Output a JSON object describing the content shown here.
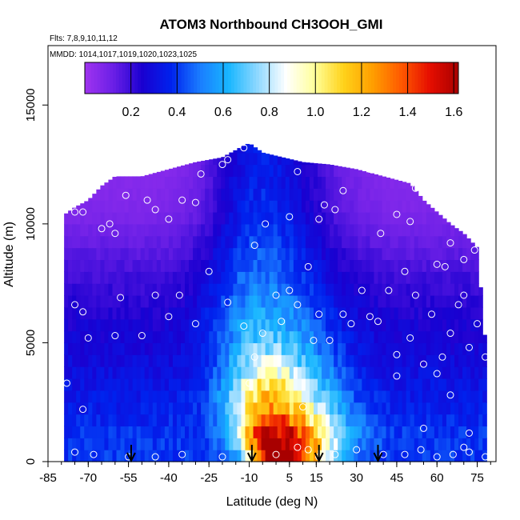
{
  "chart_data": {
    "type": "heatmap",
    "title": "ATOM3 Northbound CH3OOH_GMI",
    "annotations": {
      "flights": "Flts: 7,8,9,10,11,12",
      "dates": "MMDD: 1014,1017,1019,1020,1023,1025"
    },
    "xlabel": "Latitude (deg N)",
    "ylabel": "Altitude (m)",
    "xlim": [
      -85,
      82
    ],
    "ylim": [
      0,
      17500
    ],
    "x_ticks": [
      -85,
      -70,
      -55,
      -40,
      -25,
      -10,
      5,
      15,
      30,
      45,
      60,
      75
    ],
    "y_ticks": [
      0,
      5000,
      10000,
      15000
    ],
    "colorbar": {
      "range": [
        0,
        1.62
      ],
      "ticks": [
        0.2,
        0.4,
        0.6,
        0.8,
        1.0,
        1.2,
        1.4,
        1.6
      ],
      "tick_labels": [
        "0.2",
        "0.4",
        "0.6",
        "0.8",
        "1.0",
        "1.2",
        "1.4",
        "1.6"
      ],
      "colors": [
        "#a034f0",
        "#6a1fe6",
        "#1a00d0",
        "#0022ee",
        "#1a7cff",
        "#18b6ff",
        "#8ed8ff",
        "#ffffff",
        "#ffff9a",
        "#ffd21a",
        "#ff9f00",
        "#ff5a00",
        "#e60e00",
        "#a80000"
      ]
    },
    "profile_top": [
      [
        -83,
        7700
      ],
      [
        -80,
        10300
      ],
      [
        -75,
        10700
      ],
      [
        -70,
        11000
      ],
      [
        -65,
        11600
      ],
      [
        -60,
        12000
      ],
      [
        -50,
        12000
      ],
      [
        -40,
        12300
      ],
      [
        -30,
        12600
      ],
      [
        -20,
        12800
      ],
      [
        -12,
        13300
      ],
      [
        -10,
        13400
      ],
      [
        -5,
        13000
      ],
      [
        10,
        12600
      ],
      [
        20,
        12500
      ],
      [
        30,
        12300
      ],
      [
        40,
        12000
      ],
      [
        50,
        11700
      ],
      [
        55,
        11000
      ],
      [
        60,
        10500
      ],
      [
        65,
        10000
      ],
      [
        70,
        9600
      ],
      [
        75,
        9000
      ],
      [
        78,
        5000
      ]
    ],
    "profile_bottom_lat": [
      -79,
      78
    ],
    "mean_profile": [
      [
        0,
        0.4
      ],
      [
        1000,
        0.4
      ],
      [
        2000,
        0.36
      ],
      [
        3000,
        0.33
      ],
      [
        4500,
        0.28
      ],
      [
        6000,
        0.25
      ],
      [
        7500,
        0.2
      ],
      [
        9000,
        0.14
      ],
      [
        10500,
        0.08
      ],
      [
        12000,
        0.06
      ],
      [
        13500,
        0.04
      ]
    ],
    "plume": [
      [
        0,
        1.48,
        6,
        13
      ],
      [
        500,
        1.4,
        8,
        14
      ],
      [
        1000,
        1.28,
        9,
        15
      ],
      [
        1500,
        1.12,
        10,
        16
      ],
      [
        2000,
        0.98,
        10,
        16
      ],
      [
        2500,
        0.88,
        11,
        16
      ],
      [
        3000,
        0.78,
        11,
        16
      ],
      [
        3500,
        0.68,
        11,
        16
      ],
      [
        4000,
        0.58,
        12,
        16
      ],
      [
        5000,
        0.44,
        12,
        17
      ],
      [
        6000,
        0.36,
        13,
        17
      ],
      [
        7000,
        0.32,
        13,
        18
      ],
      [
        8000,
        0.3,
        13,
        18
      ]
    ],
    "plume_center": [
      [
        0,
        0
      ],
      [
        1000,
        -1
      ],
      [
        2000,
        -2
      ],
      [
        3000,
        -3
      ],
      [
        4000,
        -3
      ],
      [
        5000,
        -4
      ],
      [
        6000,
        -5
      ],
      [
        7000,
        -6
      ]
    ],
    "arrows": [
      -54,
      -9,
      16,
      38
    ],
    "observations": [
      [
        -83,
        7800
      ],
      [
        -82,
        10200
      ],
      [
        -75,
        10500
      ],
      [
        -72,
        10500
      ],
      [
        -68,
        11800
      ],
      [
        -65,
        9800
      ],
      [
        -62,
        10000
      ],
      [
        -60,
        9600
      ],
      [
        -56,
        11200
      ],
      [
        -48,
        11000
      ],
      [
        -45,
        10600
      ],
      [
        -40,
        10200
      ],
      [
        -35,
        11000
      ],
      [
        -30,
        10900
      ],
      [
        -28,
        12100
      ],
      [
        -20,
        12500
      ],
      [
        -18,
        12700
      ],
      [
        -12,
        13200
      ],
      [
        -8,
        9100
      ],
      [
        -4,
        10000
      ],
      [
        5,
        10300
      ],
      [
        8,
        12200
      ],
      [
        12,
        12900
      ],
      [
        16,
        10200
      ],
      [
        18,
        10800
      ],
      [
        22,
        10600
      ],
      [
        25,
        11400
      ],
      [
        35,
        12300
      ],
      [
        39,
        9600
      ],
      [
        45,
        10400
      ],
      [
        50,
        10100
      ],
      [
        52,
        11500
      ],
      [
        56,
        11900
      ],
      [
        60,
        8300
      ],
      [
        63,
        8200
      ],
      [
        65,
        9200
      ],
      [
        70,
        8500
      ],
      [
        74,
        8900
      ],
      [
        -75,
        6600
      ],
      [
        -72,
        6300
      ],
      [
        -70,
        5200
      ],
      [
        -60,
        5300
      ],
      [
        -58,
        6900
      ],
      [
        -50,
        5300
      ],
      [
        -45,
        7000
      ],
      [
        -40,
        6100
      ],
      [
        -36,
        7000
      ],
      [
        -30,
        5800
      ],
      [
        -25,
        8000
      ],
      [
        -18,
        6700
      ],
      [
        -12,
        5700
      ],
      [
        -8,
        4400
      ],
      [
        -5,
        5400
      ],
      [
        0,
        7000
      ],
      [
        2,
        5900
      ],
      [
        5,
        7200
      ],
      [
        8,
        6600
      ],
      [
        12,
        8200
      ],
      [
        14,
        5100
      ],
      [
        16,
        6200
      ],
      [
        20,
        5100
      ],
      [
        25,
        6200
      ],
      [
        28,
        5800
      ],
      [
        32,
        7200
      ],
      [
        35,
        6100
      ],
      [
        38,
        5900
      ],
      [
        42,
        7200
      ],
      [
        45,
        4500
      ],
      [
        48,
        8000
      ],
      [
        50,
        5200
      ],
      [
        52,
        7000
      ],
      [
        55,
        4100
      ],
      [
        58,
        6200
      ],
      [
        60,
        3700
      ],
      [
        62,
        4400
      ],
      [
        65,
        5400
      ],
      [
        68,
        6600
      ],
      [
        70,
        7000
      ],
      [
        72,
        4800
      ],
      [
        75,
        5800
      ],
      [
        78,
        4400
      ],
      [
        -78,
        3300
      ],
      [
        -72,
        2200
      ],
      [
        -10,
        3300
      ],
      [
        10,
        2300
      ],
      [
        45,
        3600
      ],
      [
        55,
        1400
      ],
      [
        65,
        2800
      ],
      [
        70,
        600
      ],
      [
        72,
        1200
      ],
      [
        -75,
        400
      ],
      [
        -68,
        300
      ],
      [
        -55,
        200
      ],
      [
        -45,
        200
      ],
      [
        -35,
        300
      ],
      [
        -20,
        200
      ],
      [
        -10,
        300
      ],
      [
        0,
        300
      ],
      [
        8,
        600
      ],
      [
        12,
        500
      ],
      [
        16,
        200
      ],
      [
        22,
        300
      ],
      [
        30,
        500
      ],
      [
        40,
        300
      ],
      [
        48,
        300
      ],
      [
        54,
        500
      ],
      [
        60,
        200
      ],
      [
        66,
        300
      ],
      [
        72,
        400
      ],
      [
        78,
        200
      ]
    ]
  }
}
